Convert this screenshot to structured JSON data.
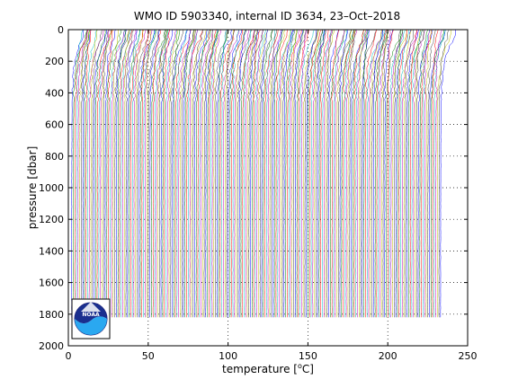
{
  "chart_data": {
    "type": "line",
    "title": "WMO ID 5903340, internal ID 3634, 23–Oct–2018",
    "xlabel": "temperature [",
    "xlabel_unit": "o",
    "xlabel_suffix": "C]",
    "ylabel": "pressure [dbar]",
    "xlim": [
      0,
      250
    ],
    "ylim": [
      0,
      2000
    ],
    "y_reversed": true,
    "grid": true,
    "x_ticks": [
      "0",
      "50",
      "100",
      "150",
      "200",
      "250"
    ],
    "y_ticks": [
      "0",
      "200",
      "400",
      "600",
      "800",
      "1000",
      "1200",
      "1400",
      "1600",
      "1800",
      "2000"
    ],
    "series_count": 232,
    "series_offset_step": 1.0,
    "series_x_start": 2.0,
    "profile_bottom_pressure": 1830,
    "series_colors": [
      "#0000ff",
      "#008000",
      "#ff0000",
      "#00bfbf",
      "#bf00bf",
      "#bfbf00",
      "#404040"
    ]
  },
  "logo": {
    "text": "NOAA"
  }
}
